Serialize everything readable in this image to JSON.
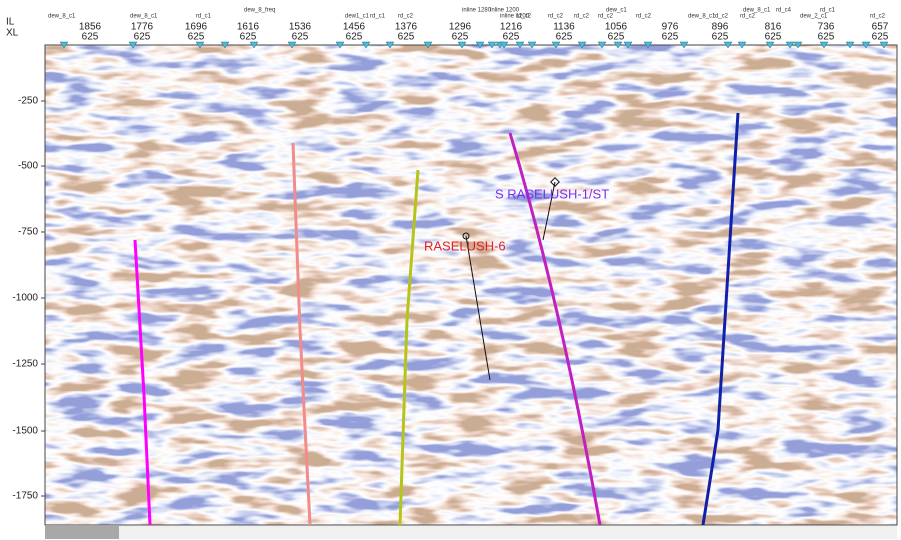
{
  "header": {
    "il_label": "IL",
    "xl_label": "XL",
    "columns": [
      {
        "il": 1856,
        "xl": 625
      },
      {
        "il": 1776,
        "xl": 625
      },
      {
        "il": 1696,
        "xl": 625
      },
      {
        "il": 1616,
        "xl": 625
      },
      {
        "il": 1536,
        "xl": 625
      },
      {
        "il": 1456,
        "xl": 625
      },
      {
        "il": 1376,
        "xl": 625
      },
      {
        "il": 1296,
        "xl": 625
      },
      {
        "il": 1216,
        "xl": 625
      },
      {
        "il": 1136,
        "xl": 625
      },
      {
        "il": 1056,
        "xl": 625
      },
      {
        "il": 976,
        "xl": 625
      },
      {
        "il": 896,
        "xl": 625
      },
      {
        "il": 816,
        "xl": 625
      },
      {
        "il": 736,
        "xl": 625
      },
      {
        "il": 657,
        "xl": 625
      }
    ],
    "tags": [
      "dew_8_c1",
      "dew_8_c1",
      "rd_c1",
      "dew_8_freq",
      "dew1_c1",
      "rd_c1",
      "rd_c2",
      "inline 1280",
      "inline 1200",
      "rd_c2",
      "inline 1200",
      "rd_c2",
      "rd_c2",
      "dew_c1",
      "rd_c2",
      "rd_c2",
      "dew_8_c1",
      "rd_c2",
      "dew_8_c1",
      "rd_c2",
      "rd_c4",
      "dew_2_c1",
      "rd_c1",
      "rd_c2"
    ]
  },
  "depth_axis": {
    "labels": [
      -250,
      -500,
      -750,
      -1000,
      -1250,
      -1500,
      -1750
    ]
  },
  "wells": [
    {
      "label": "S RASELUSH-1/ST"
    },
    {
      "label": "RASELUSH-6"
    }
  ]
}
